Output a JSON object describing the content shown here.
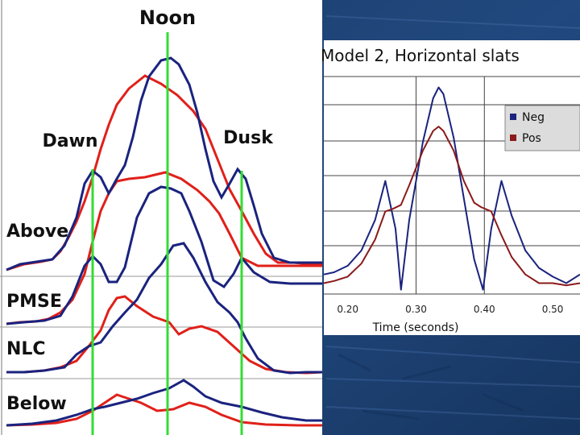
{
  "left_panel": {
    "top_label": "Noon",
    "dawn_label": "Dawn",
    "dusk_label": "Dusk",
    "row_labels": [
      "Above",
      "PMSE",
      "NLC",
      "Below"
    ],
    "colors": {
      "blue": "#1a237e",
      "red": "#e0201a",
      "green": "#33dd33"
    }
  },
  "chart_data": [
    {
      "type": "line",
      "title": "",
      "series": [],
      "note_rows": [
        "Above",
        "PMSE",
        "NLC",
        "Below"
      ]
    },
    {
      "type": "line",
      "title": "Model 2, Horizontal slats",
      "xlabel": "Time (seconds)",
      "ylabel": "",
      "xlim": [
        0.165,
        0.54
      ],
      "x_ticks": [
        "0.20",
        "0.30",
        "0.40",
        "0.50"
      ],
      "x_tick_values": [
        0.2,
        0.3,
        0.4,
        0.5
      ],
      "vertical_gridlines": [
        0.3,
        0.4
      ],
      "legend": {
        "position": "top-right",
        "entries": [
          "Neg",
          "Pos"
        ]
      },
      "series": [
        {
          "name": "Neg",
          "color": "#1a237e",
          "x": [
            0.165,
            0.18,
            0.2,
            0.22,
            0.24,
            0.255,
            0.27,
            0.278,
            0.29,
            0.31,
            0.325,
            0.333,
            0.34,
            0.355,
            0.37,
            0.385,
            0.398,
            0.41,
            0.425,
            0.44,
            0.46,
            0.48,
            0.5,
            0.52,
            0.54
          ],
          "y": [
            0.09,
            0.1,
            0.13,
            0.2,
            0.34,
            0.52,
            0.3,
            0.02,
            0.34,
            0.7,
            0.9,
            0.95,
            0.92,
            0.72,
            0.44,
            0.16,
            0.02,
            0.3,
            0.52,
            0.36,
            0.2,
            0.12,
            0.08,
            0.05,
            0.09
          ]
        },
        {
          "name": "Pos",
          "color": "#8b1a1a",
          "x": [
            0.165,
            0.18,
            0.2,
            0.22,
            0.24,
            0.255,
            0.265,
            0.278,
            0.29,
            0.31,
            0.325,
            0.333,
            0.34,
            0.355,
            0.37,
            0.385,
            0.395,
            0.41,
            0.425,
            0.44,
            0.46,
            0.48,
            0.5,
            0.52,
            0.54
          ],
          "y": [
            0.05,
            0.06,
            0.08,
            0.14,
            0.25,
            0.38,
            0.39,
            0.41,
            0.5,
            0.66,
            0.75,
            0.77,
            0.75,
            0.66,
            0.52,
            0.42,
            0.4,
            0.38,
            0.27,
            0.17,
            0.09,
            0.05,
            0.05,
            0.04,
            0.05
          ]
        }
      ]
    }
  ]
}
